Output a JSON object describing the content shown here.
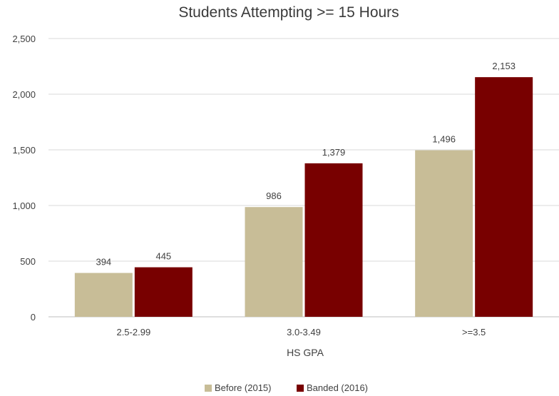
{
  "chart_data": {
    "type": "bar",
    "title": "Students Attempting >= 15 Hours",
    "xlabel": "HS GPA",
    "ylabel": "",
    "ylim": [
      0,
      2500
    ],
    "yticks": [
      0,
      500,
      1000,
      1500,
      2000,
      2500
    ],
    "ytick_labels": [
      "0",
      "500",
      "1,000",
      "1,500",
      "2,000",
      "2,500"
    ],
    "grid": true,
    "legend_position": "bottom",
    "categories": [
      "2.5-2.99",
      "3.0-3.49",
      ">=3.5"
    ],
    "series": [
      {
        "name": "Before (2015)",
        "color": "#c8bd97",
        "values": [
          394,
          986,
          1496
        ],
        "labels": [
          "394",
          "986",
          "1,496"
        ]
      },
      {
        "name": "Banded (2016)",
        "color": "#780000",
        "values": [
          445,
          1379,
          2153
        ],
        "labels": [
          "445",
          "1,379",
          "2,153"
        ]
      }
    ]
  }
}
